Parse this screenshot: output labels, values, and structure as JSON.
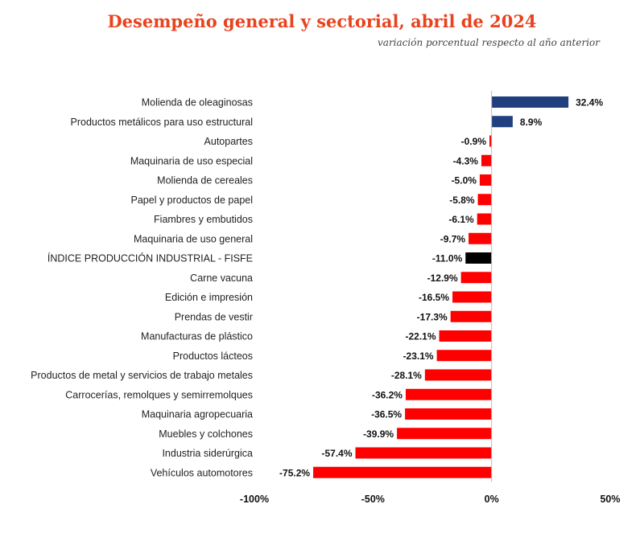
{
  "chart_data": {
    "type": "bar",
    "orientation": "horizontal",
    "title": "Desempeño general y sectorial, abril de 2024",
    "subtitle": "variación porcentual respecto al año anterior",
    "xlabel": "",
    "ylabel": "",
    "xlim": [
      -100,
      50
    ],
    "grid": false,
    "categories": [
      "Molienda de oleaginosas",
      "Productos metálicos para uso estructural",
      "Autopartes",
      "Maquinaria de uso especial",
      "Molienda de cereales",
      "Papel y productos de papel",
      "Fiambres y embutidos",
      "Maquinaria de uso general",
      "ÍNDICE PRODUCCIÓN INDUSTRIAL - FISFE",
      "Carne vacuna",
      "Edición e impresión",
      "Prendas de vestir",
      "Manufacturas de plástico",
      "Productos lácteos",
      "Productos de metal y servicios de trabajo metales",
      "Carrocerías, remolques y semirremolques",
      "Maquinaria agropecuaria",
      "Muebles y colchones",
      "Industria siderúrgica",
      "Vehículos automotores"
    ],
    "values": [
      32.4,
      8.9,
      -0.9,
      -4.3,
      -5.0,
      -5.8,
      -6.1,
      -9.7,
      -11.0,
      -12.9,
      -16.5,
      -17.3,
      -22.1,
      -23.1,
      -28.1,
      -36.2,
      -36.5,
      -39.9,
      -57.4,
      -75.2
    ],
    "value_labels": [
      "32.4%",
      "8.9%",
      "-0.9%",
      "-4.3%",
      "-5.0%",
      "-5.8%",
      "-6.1%",
      "-9.7%",
      "-11.0%",
      "-12.9%",
      "-16.5%",
      "-17.3%",
      "-22.1%",
      "-23.1%",
      "-28.1%",
      "-36.2%",
      "-36.5%",
      "-39.9%",
      "-57.4%",
      "-75.2%"
    ],
    "highlight_index": 8,
    "ticks": [
      -100,
      -50,
      0,
      50
    ],
    "tick_labels": [
      "-100%",
      "-50%",
      "0%",
      "50%"
    ],
    "colors": {
      "positive": "#1f3f7f",
      "negative": "#ff0000",
      "highlight": "#000000",
      "title": "#e8431f",
      "axis": "#bbbbbb"
    }
  }
}
